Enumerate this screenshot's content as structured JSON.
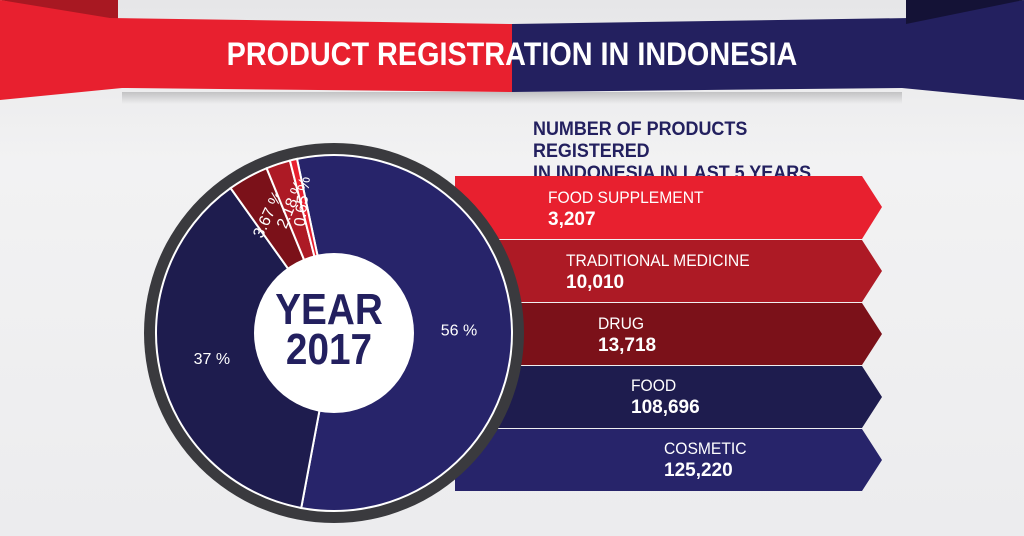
{
  "header": {
    "title": "PRODUCT REGISTRATION IN INDONESIA",
    "colors": {
      "red": "#e8202f",
      "navy": "#23205f"
    }
  },
  "subtitle": {
    "line1": "NUMBER OF PRODUCTS REGISTERED",
    "line2": "IN INDONESIA IN LAST 5 YEARS"
  },
  "center_label": {
    "line1": "YEAR",
    "line2": "2017"
  },
  "chart_data": [
    {
      "type": "pie",
      "variant": "donut",
      "title": "",
      "slices": [
        {
          "value": 56,
          "label": "56 %",
          "color": "#27246a"
        },
        {
          "value": 37,
          "label": "37 %",
          "color": "#1e1c4e"
        },
        {
          "value": 3.67,
          "label": "3.67 %",
          "color": "#7b1119"
        },
        {
          "value": 2.18,
          "label": "2.18 %",
          "color": "#ad1a25"
        },
        {
          "value": 0.65,
          "label": "0.65 %",
          "color": "#e8202f"
        }
      ]
    },
    {
      "type": "bar",
      "title": "NUMBER OF PRODUCTS REGISTERED IN INDONESIA IN LAST 5 YEARS",
      "categories": [
        "FOOD SUPPLEMENT",
        "TRADITIONAL MEDICINE",
        "DRUG",
        "FOOD",
        "COSMETIC"
      ],
      "values": [
        3207,
        10010,
        13718,
        108696,
        125220
      ],
      "value_labels": [
        "3,207",
        "10,010",
        "13,718",
        "108,696",
        "125,220"
      ],
      "colors": [
        "#e8202f",
        "#ad1a25",
        "#7b1119",
        "#1e1c4e",
        "#27246a"
      ]
    }
  ]
}
